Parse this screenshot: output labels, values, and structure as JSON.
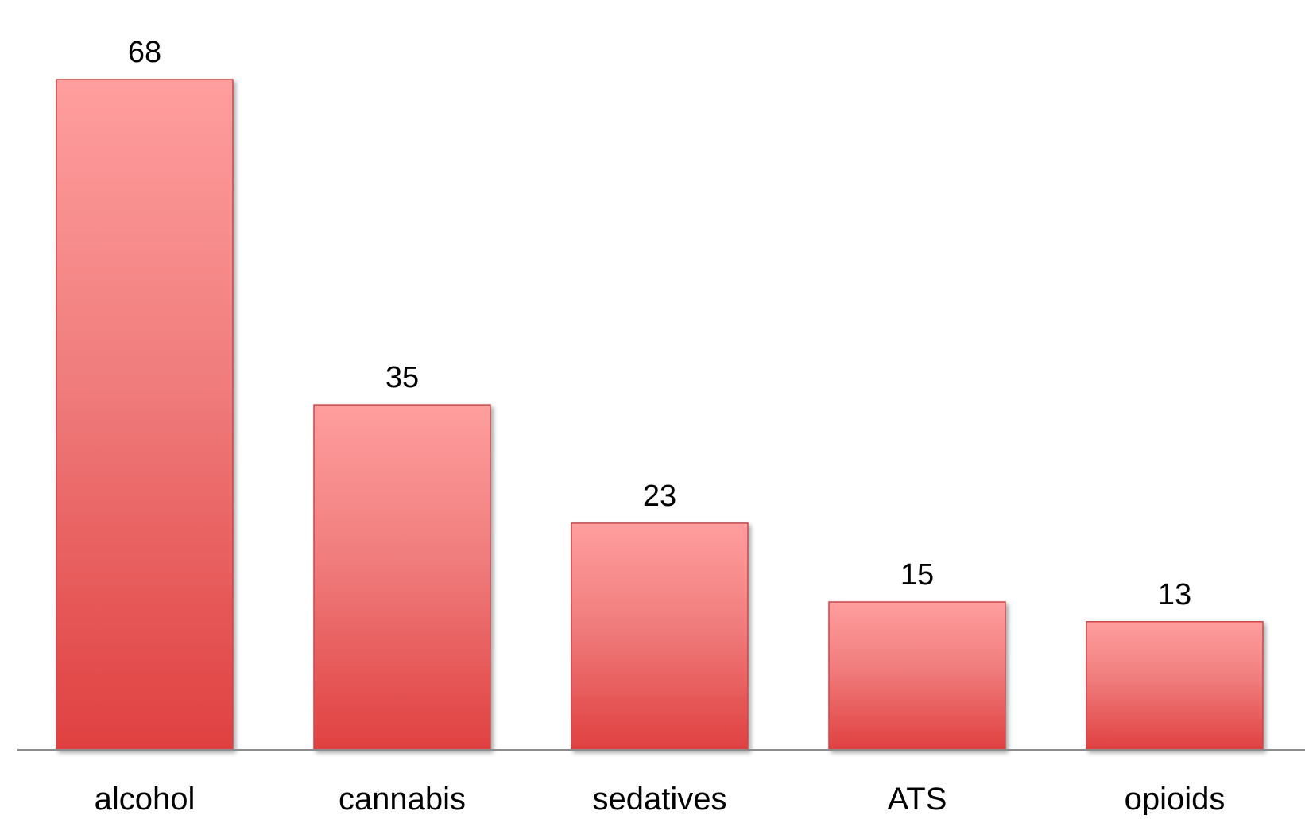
{
  "chart_data": {
    "type": "bar",
    "title": "",
    "xlabel": "",
    "ylabel": "",
    "categories": [
      "alcohol",
      "cannabis",
      "sedatives",
      "ATS",
      "opioids"
    ],
    "values": [
      68,
      35,
      23,
      15,
      13
    ],
    "data_labels": [
      "68",
      "35",
      "23",
      "15",
      "13"
    ],
    "ylim": [
      0,
      68
    ],
    "grid": false,
    "legend": "none",
    "colors": {
      "bar_top": "#ff9e9e",
      "bar_bottom": "#e04040",
      "bar_edge": "#c84848",
      "axis_line": "#8c8c8c"
    }
  }
}
